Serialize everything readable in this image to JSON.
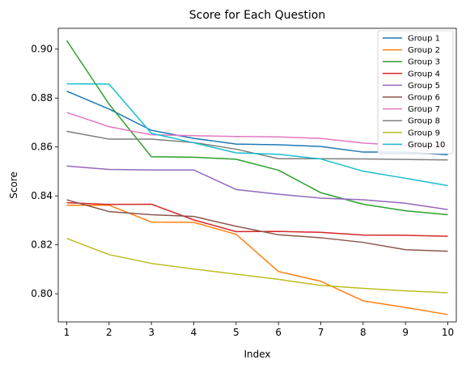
{
  "chart_data": {
    "type": "line",
    "title": "Score for Each Question",
    "xlabel": "Index",
    "ylabel": "Score",
    "x": [
      1,
      2,
      3,
      4,
      5,
      6,
      7,
      8,
      9,
      10
    ],
    "xlim": [
      0.8,
      10.2
    ],
    "ylim": [
      0.7885,
      0.9085
    ],
    "x_ticks": [
      1,
      2,
      3,
      4,
      5,
      6,
      7,
      8,
      9,
      10
    ],
    "y_ticks": [
      0.8,
      0.82,
      0.84,
      0.86,
      0.88,
      0.9
    ],
    "y_tick_labels": [
      "0.80",
      "0.82",
      "0.84",
      "0.86",
      "0.88",
      "0.90"
    ],
    "grid": false,
    "legend_position": "upper right",
    "series": [
      {
        "name": "Group 1",
        "color": "#1f77b4",
        "values": [
          0.8828,
          0.8755,
          0.8668,
          0.8635,
          0.8612,
          0.8609,
          0.8602,
          0.8579,
          0.8579,
          0.8568
        ]
      },
      {
        "name": "Group 2",
        "color": "#ff7f0e",
        "values": [
          0.8362,
          0.8362,
          0.8293,
          0.8292,
          0.8243,
          0.8091,
          0.8051,
          0.7971,
          0.7944,
          0.7915
        ]
      },
      {
        "name": "Group 3",
        "color": "#2ca02c",
        "values": [
          0.9035,
          0.8775,
          0.856,
          0.8558,
          0.855,
          0.8505,
          0.8413,
          0.8366,
          0.8339,
          0.8323
        ]
      },
      {
        "name": "Group 4",
        "color": "#d62728",
        "values": [
          0.8372,
          0.8365,
          0.8366,
          0.8302,
          0.8254,
          0.8255,
          0.8251,
          0.824,
          0.8239,
          0.8235
        ]
      },
      {
        "name": "Group 5",
        "color": "#9467bd",
        "values": [
          0.8522,
          0.8508,
          0.8506,
          0.8506,
          0.8426,
          0.8407,
          0.8391,
          0.8384,
          0.837,
          0.8344
        ]
      },
      {
        "name": "Group 6",
        "color": "#8c564b",
        "values": [
          0.8384,
          0.8336,
          0.8323,
          0.8316,
          0.8276,
          0.8241,
          0.8229,
          0.821,
          0.818,
          0.8174
        ]
      },
      {
        "name": "Group 7",
        "color": "#e377c2",
        "values": [
          0.8741,
          0.8683,
          0.865,
          0.8646,
          0.8643,
          0.8641,
          0.8635,
          0.8616,
          0.8606,
          0.8601
        ]
      },
      {
        "name": "Group 8",
        "color": "#7f7f7f",
        "values": [
          0.8664,
          0.8632,
          0.8632,
          0.8618,
          0.8591,
          0.8552,
          0.8552,
          0.8551,
          0.8549,
          0.8547
        ]
      },
      {
        "name": "Group 9",
        "color": "#bcbd22",
        "values": [
          0.8226,
          0.816,
          0.8124,
          0.8101,
          0.808,
          0.8059,
          0.8034,
          0.8022,
          0.8012,
          0.8004
        ]
      },
      {
        "name": "Group 10",
        "color": "#17becf",
        "values": [
          0.8858,
          0.8857,
          0.8656,
          0.8617,
          0.8576,
          0.857,
          0.8551,
          0.8501,
          0.8472,
          0.8442
        ]
      }
    ]
  }
}
